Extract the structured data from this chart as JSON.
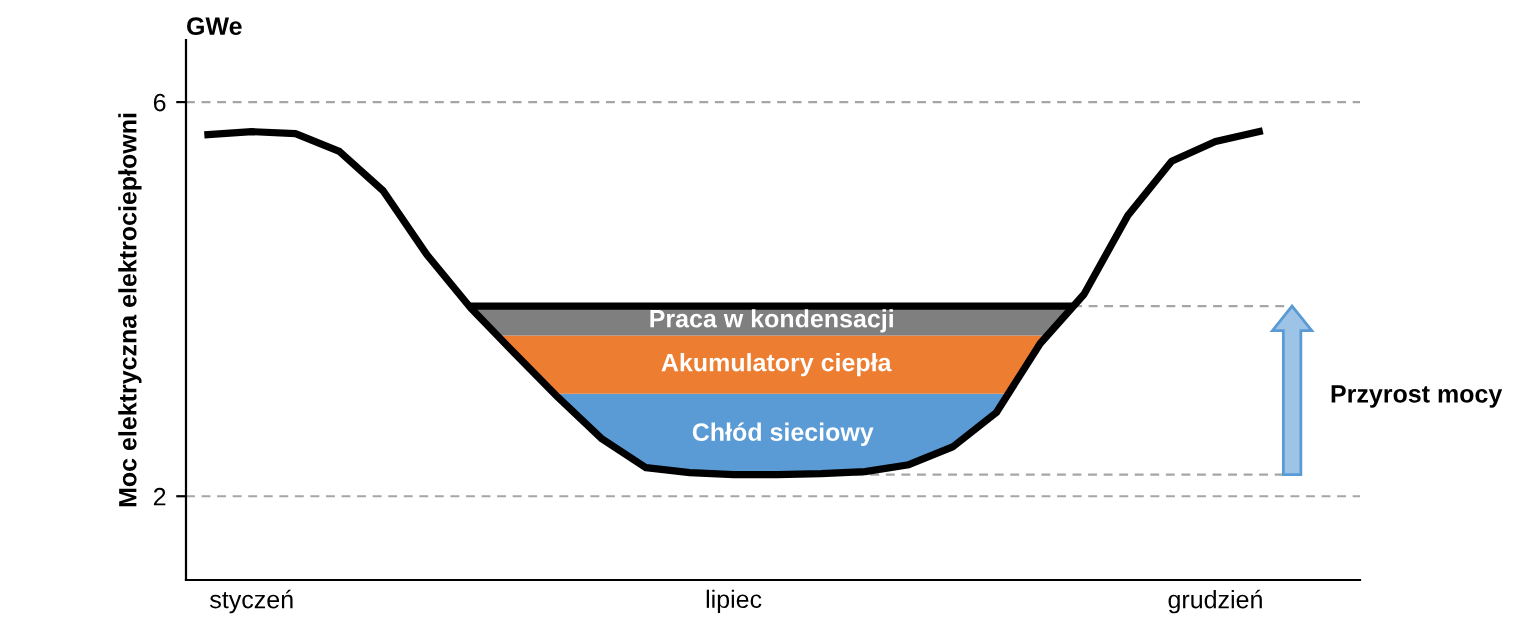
{
  "chart_data": {
    "type": "line",
    "ylabel": "Moc elektryczna elektrociepłowni",
    "annotations": [
      "GWe",
      "Przyrost mocy"
    ],
    "categories": [
      null,
      "styczeń",
      null,
      null,
      null,
      null,
      null,
      null,
      null,
      null,
      null,
      null,
      "lipiec",
      null,
      null,
      null,
      null,
      null,
      null,
      null,
      null,
      null,
      null,
      "grudzień",
      null
    ],
    "ylim": [
      1.15,
      6.63
    ],
    "yticks": [
      2,
      6
    ],
    "grid": false,
    "legend": false,
    "ref_lines": [
      {
        "axis": "y",
        "value": 6,
        "color": "#a6a6a6",
        "line_style": "dashed"
      },
      {
        "axis": "y",
        "value": 2,
        "color": "#a6a6a6",
        "line_style": "dashed"
      },
      {
        "axis": "y",
        "value": 3.93,
        "color": "#000000",
        "line_style": "solid"
      },
      {
        "axis": "y",
        "value": 3.93,
        "color": "#a6a6a6",
        "line_style": "dashed"
      },
      {
        "axis": "y",
        "value": 2.22,
        "color": "#a6a6a6",
        "line_style": "dashed"
      }
    ],
    "bands": [
      {
        "axis": "y",
        "from": 2.22,
        "to": 3.04,
        "label": "Chłód sieciowy",
        "color": "#5b9bd5"
      },
      {
        "axis": "y",
        "from": 3.04,
        "to": 3.63,
        "label": "Akumulatory ciepła",
        "color": "#ed7d31"
      },
      {
        "axis": "y",
        "from": 3.63,
        "to": 3.93,
        "label": "Praca w kondensacji",
        "color": "#7f7f7f"
      }
    ],
    "series": [
      {
        "color": "#000000",
        "line_style": "solid",
        "values": [
          5.67,
          5.7,
          5.68,
          5.5,
          5.1,
          4.45,
          3.91,
          3.45,
          3.0,
          2.58,
          2.29,
          2.24,
          2.22,
          2.22,
          2.23,
          2.25,
          2.32,
          2.5,
          2.85,
          3.55,
          4.05,
          4.85,
          5.4,
          5.6,
          5.7
        ]
      }
    ]
  }
}
